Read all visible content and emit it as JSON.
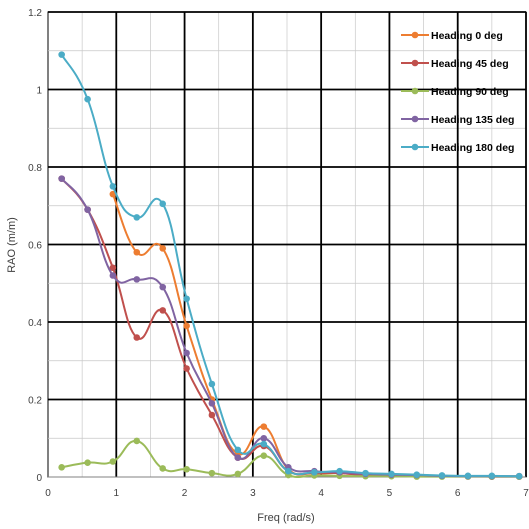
{
  "chart_data": {
    "type": "line",
    "title": "",
    "xlabel": "Freq (rad/s)",
    "ylabel": "RAO (m/m)",
    "xlim": [
      0,
      7
    ],
    "ylim": [
      0,
      1.2
    ],
    "x_ticks": [
      "0",
      "1",
      "2",
      "3",
      "4",
      "5",
      "6",
      "7"
    ],
    "y_ticks": [
      "0",
      "0.2",
      "0.4",
      "0.6",
      "0.8",
      "1",
      "1.2"
    ],
    "grid": true,
    "legend_position": "top-right",
    "series": [
      {
        "name": "Heading 0 deg",
        "color": "#ED7D31",
        "points": [
          [
            0.95,
            0.73
          ],
          [
            1.3,
            0.58
          ],
          [
            1.68,
            0.59
          ],
          [
            2.03,
            0.39
          ],
          [
            2.4,
            0.2
          ],
          [
            2.78,
            0.06
          ],
          [
            3.16,
            0.13
          ],
          [
            3.52,
            0.02
          ],
          [
            3.9,
            0.01
          ],
          [
            4.27,
            0.01
          ],
          [
            4.65,
            0.005
          ],
          [
            5.03,
            0.005
          ],
          [
            5.4,
            0.005
          ],
          [
            5.77,
            0.003
          ],
          [
            6.15,
            0.002
          ],
          [
            6.5,
            0.002
          ],
          [
            6.9,
            0.002
          ]
        ]
      },
      {
        "name": "Heading 45 deg",
        "color": "#C0504D",
        "points": [
          [
            0.2,
            0.77
          ],
          [
            0.58,
            0.69
          ],
          [
            0.95,
            0.54
          ],
          [
            1.3,
            0.36
          ],
          [
            1.68,
            0.43
          ],
          [
            2.03,
            0.28
          ],
          [
            2.4,
            0.16
          ],
          [
            2.78,
            0.05
          ],
          [
            3.16,
            0.08
          ],
          [
            3.52,
            0.015
          ],
          [
            3.9,
            0.01
          ],
          [
            4.27,
            0.01
          ],
          [
            4.65,
            0.005
          ],
          [
            5.03,
            0.005
          ],
          [
            5.4,
            0.003
          ],
          [
            5.77,
            0.002
          ],
          [
            6.15,
            0.002
          ],
          [
            6.5,
            0.001
          ],
          [
            6.9,
            0.001
          ]
        ]
      },
      {
        "name": "Heading 90 deg",
        "color": "#9BBB59",
        "points": [
          [
            0.2,
            0.025
          ],
          [
            0.58,
            0.037
          ],
          [
            0.95,
            0.04
          ],
          [
            1.3,
            0.093
          ],
          [
            1.68,
            0.022
          ],
          [
            2.03,
            0.02
          ],
          [
            2.4,
            0.01
          ],
          [
            2.78,
            0.008
          ],
          [
            3.16,
            0.055
          ],
          [
            3.52,
            0.005
          ],
          [
            3.9,
            0.004
          ],
          [
            4.27,
            0.003
          ],
          [
            4.65,
            0.002
          ],
          [
            5.03,
            0.002
          ],
          [
            5.4,
            0.001
          ],
          [
            5.77,
            0.001
          ],
          [
            6.15,
            0.001
          ],
          [
            6.5,
            0.001
          ],
          [
            6.9,
            0.001
          ]
        ]
      },
      {
        "name": "Heading 135 deg",
        "color": "#8064A2",
        "points": [
          [
            0.2,
            0.77
          ],
          [
            0.58,
            0.69
          ],
          [
            0.95,
            0.52
          ],
          [
            1.3,
            0.51
          ],
          [
            1.68,
            0.49
          ],
          [
            2.03,
            0.32
          ],
          [
            2.4,
            0.19
          ],
          [
            2.78,
            0.05
          ],
          [
            3.16,
            0.1
          ],
          [
            3.52,
            0.025
          ],
          [
            3.9,
            0.015
          ],
          [
            4.27,
            0.012
          ],
          [
            4.65,
            0.008
          ],
          [
            5.03,
            0.006
          ],
          [
            5.4,
            0.005
          ],
          [
            5.77,
            0.003
          ],
          [
            6.15,
            0.002
          ],
          [
            6.5,
            0.002
          ],
          [
            6.9,
            0.002
          ]
        ]
      },
      {
        "name": "Heading 180 deg",
        "color": "#4BACC6",
        "points": [
          [
            0.2,
            1.09
          ],
          [
            0.58,
            0.975
          ],
          [
            0.95,
            0.75
          ],
          [
            1.3,
            0.67
          ],
          [
            1.68,
            0.705
          ],
          [
            2.03,
            0.46
          ],
          [
            2.4,
            0.24
          ],
          [
            2.78,
            0.07
          ],
          [
            3.16,
            0.085
          ],
          [
            3.52,
            0.015
          ],
          [
            3.9,
            0.012
          ],
          [
            4.27,
            0.015
          ],
          [
            4.65,
            0.01
          ],
          [
            5.03,
            0.008
          ],
          [
            5.4,
            0.006
          ],
          [
            5.77,
            0.004
          ],
          [
            6.15,
            0.003
          ],
          [
            6.5,
            0.003
          ],
          [
            6.9,
            0.002
          ]
        ]
      }
    ]
  }
}
